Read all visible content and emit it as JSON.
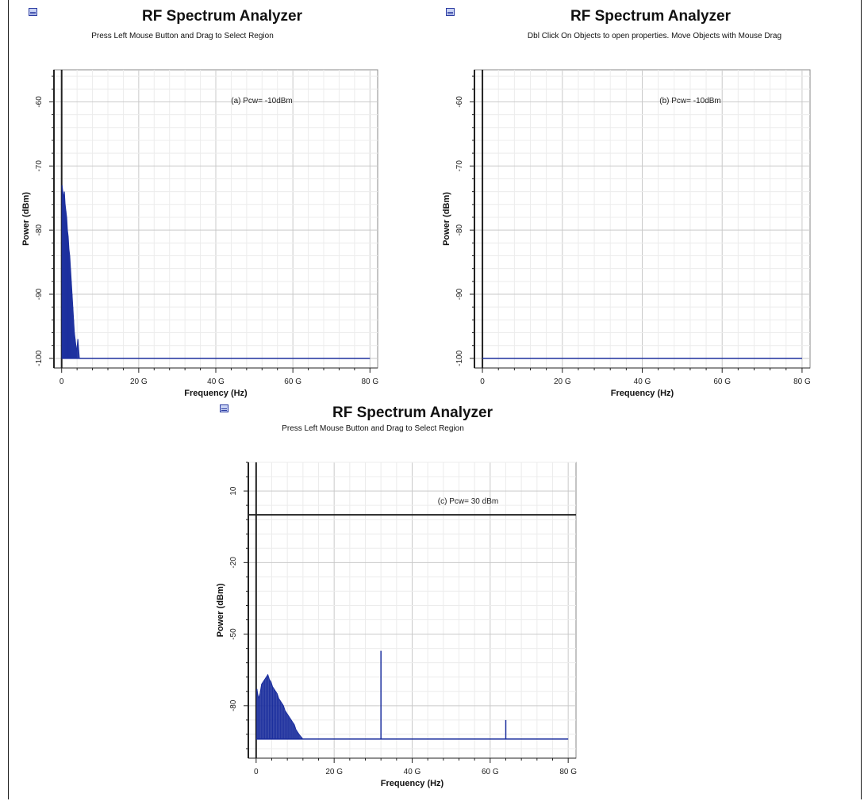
{
  "panels": [
    {
      "id": "a",
      "window_title": "RF Spectrum Analyzer",
      "subtitle": "Press Left Mouse Button and Drag to Select Region",
      "icon": "spectrum-analyzer-icon"
    },
    {
      "id": "b",
      "window_title": "RF Spectrum Analyzer",
      "subtitle": "Dbl Click On Objects to open properties.  Move Objects with Mouse Drag",
      "icon": "spectrum-analyzer-icon"
    },
    {
      "id": "c",
      "window_title": "RF Spectrum Analyzer",
      "subtitle": "Press Left Mouse Button and Drag to Select Region",
      "icon": "spectrum-analyzer-icon"
    }
  ],
  "chart_data": [
    {
      "type": "line",
      "annotation": "(a) Pcw= -10dBm",
      "xlabel": "Frequency (Hz)",
      "ylabel": "Power (dBm)",
      "xlim": [
        -2,
        82
      ],
      "ylim": [
        -101.5,
        -55
      ],
      "xticks": [
        0,
        20,
        40,
        60,
        80
      ],
      "xtick_labels": [
        "0",
        "20 G",
        "40 G",
        "60 G",
        "80 G"
      ],
      "yticks": [
        -60,
        -70,
        -80,
        -90,
        -100
      ],
      "ytick_labels": [
        "-60",
        "-70",
        "-80",
        "-90",
        "-100"
      ],
      "grid": true,
      "line_color": "#1c2f9e",
      "noise_floor": -100,
      "series": [
        {
          "x": [
            0.1,
            0.3,
            0.5,
            0.7,
            0.9,
            1.1,
            1.3,
            1.5,
            1.7,
            1.9,
            2.1,
            2.3,
            2.5,
            2.7,
            2.9,
            3.1,
            3.3,
            3.5,
            3.7,
            3.9,
            4.2,
            4.6,
            5.0
          ],
          "y": [
            -73,
            -74,
            -75,
            -74,
            -76,
            -77,
            -78,
            -80,
            -81,
            -83,
            -84,
            -86,
            -88,
            -90,
            -92,
            -94,
            -96,
            -97,
            -98,
            -99,
            -97,
            -100,
            -100
          ]
        }
      ]
    },
    {
      "type": "line",
      "annotation": "(b) Pcw= -10dBm",
      "xlabel": "Frequency (Hz)",
      "ylabel": "Power (dBm)",
      "xlim": [
        -2,
        82
      ],
      "ylim": [
        -101.5,
        -55
      ],
      "xticks": [
        0,
        20,
        40,
        60,
        80
      ],
      "xtick_labels": [
        "0",
        "20 G",
        "40 G",
        "60 G",
        "80 G"
      ],
      "yticks": [
        -60,
        -70,
        -80,
        -90,
        -100
      ],
      "ytick_labels": [
        "-60",
        "-70",
        "-80",
        "-90",
        "-100"
      ],
      "grid": true,
      "line_color": "#1c2f9e",
      "noise_floor": -100,
      "series": [
        {
          "x": [
            0,
            80
          ],
          "y": [
            -100,
            -100
          ]
        }
      ]
    },
    {
      "type": "line",
      "annotation": "(c) Pcw= 30 dBm",
      "xlabel": "Frequency (Hz)",
      "ylabel": "Power (dBm)",
      "xlim": [
        -2,
        82
      ],
      "ylim": [
        -102,
        22
      ],
      "xticks": [
        0,
        20,
        40,
        60,
        80
      ],
      "xtick_labels": [
        "0",
        "20 G",
        "40 G",
        "60 G",
        "80 G"
      ],
      "yticks": [
        10,
        -20,
        -50,
        -80
      ],
      "ytick_labels": [
        "10",
        "-20",
        "-50",
        "-80"
      ],
      "grid": true,
      "line_color": "#1c2f9e",
      "noise_floor": -94,
      "carrier_level": 0,
      "series": [
        {
          "x": [
            0.2,
            0.6,
            1.0,
            1.4,
            1.8,
            2.2,
            2.6,
            3.0,
            3.4,
            3.8,
            4.2,
            4.6,
            5.0,
            5.4,
            5.8,
            6.2,
            6.6,
            7.0,
            7.4,
            7.8,
            8.2,
            8.6,
            9.0,
            9.4,
            9.8,
            10.2,
            10.6,
            11.0,
            11.5,
            12.0
          ],
          "y": [
            -73,
            -77,
            -75,
            -71,
            -70,
            -69,
            -68,
            -67,
            -69,
            -70,
            -72,
            -73,
            -74,
            -75,
            -77,
            -78,
            -79,
            -80,
            -82,
            -83,
            -84,
            -85,
            -86,
            -87,
            -88,
            -90,
            -91,
            -92,
            -93,
            -94
          ]
        },
        {
          "x": [
            32,
            32
          ],
          "y": [
            -94,
            -57
          ]
        },
        {
          "x": [
            64,
            64
          ],
          "y": [
            -94,
            -86
          ]
        }
      ]
    }
  ]
}
